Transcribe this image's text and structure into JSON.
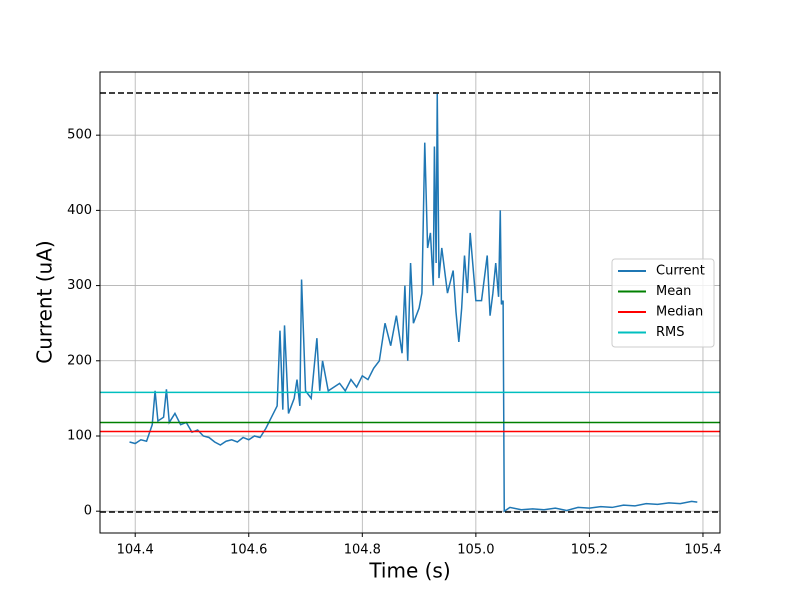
{
  "chart_data": {
    "type": "line",
    "xlabel": "Time (s)",
    "ylabel": "Current (uA)",
    "x": [
      104.39,
      104.4,
      104.41,
      104.42,
      104.43,
      104.435,
      104.44,
      104.45,
      104.455,
      104.46,
      104.47,
      104.48,
      104.49,
      104.5,
      104.51,
      104.52,
      104.53,
      104.54,
      104.55,
      104.56,
      104.57,
      104.58,
      104.59,
      104.6,
      104.61,
      104.62,
      104.63,
      104.64,
      104.65,
      104.655,
      104.66,
      104.663,
      104.67,
      104.68,
      104.685,
      104.69,
      104.693,
      104.7,
      104.71,
      104.72,
      104.725,
      104.73,
      104.74,
      104.75,
      104.76,
      104.77,
      104.78,
      104.79,
      104.8,
      104.81,
      104.82,
      104.83,
      104.84,
      104.85,
      104.86,
      104.87,
      104.875,
      104.88,
      104.885,
      104.89,
      104.9,
      104.905,
      104.91,
      104.915,
      104.92,
      104.925,
      104.927,
      104.93,
      104.932,
      104.935,
      104.94,
      104.95,
      104.96,
      104.965,
      104.97,
      104.975,
      104.98,
      104.985,
      104.99,
      105.0,
      105.01,
      105.02,
      105.025,
      105.03,
      105.035,
      105.04,
      105.043,
      105.045,
      105.048,
      105.05,
      105.06,
      105.08,
      105.1,
      105.12,
      105.14,
      105.16,
      105.18,
      105.2,
      105.22,
      105.24,
      105.26,
      105.28,
      105.3,
      105.32,
      105.34,
      105.36,
      105.38,
      105.39
    ],
    "series": [
      {
        "name": "Current",
        "color": "#1f77b4",
        "values": [
          92,
          90,
          95,
          93,
          115,
          160,
          120,
          125,
          162,
          118,
          130,
          115,
          118,
          105,
          108,
          100,
          98,
          92,
          88,
          93,
          95,
          92,
          98,
          95,
          100,
          98,
          110,
          125,
          140,
          240,
          135,
          247,
          130,
          150,
          175,
          140,
          308,
          160,
          150,
          230,
          160,
          200,
          160,
          165,
          170,
          160,
          175,
          165,
          180,
          175,
          190,
          200,
          250,
          220,
          260,
          210,
          300,
          200,
          330,
          250,
          270,
          290,
          490,
          350,
          370,
          300,
          485,
          330,
          555,
          310,
          350,
          290,
          320,
          265,
          225,
          270,
          340,
          290,
          370,
          280,
          280,
          340,
          260,
          290,
          330,
          285,
          400,
          275,
          280,
          0,
          5,
          2,
          3,
          2,
          4,
          1,
          5,
          4,
          6,
          5,
          8,
          7,
          10,
          9,
          11,
          10,
          13,
          12
        ]
      }
    ],
    "hlines": [
      {
        "name": "Mean",
        "color": "#008000",
        "value": 118
      },
      {
        "name": "Median",
        "color": "#ff0000",
        "value": 106
      },
      {
        "name": "RMS",
        "color": "#00bfbf",
        "value": 158
      }
    ],
    "dashed_lines": [
      {
        "value": 556,
        "color": "#000000"
      },
      {
        "value": -1,
        "color": "#000000"
      }
    ],
    "xlim": [
      104.338,
      105.43
    ],
    "ylim": [
      -29,
      584
    ],
    "xticks": [
      104.4,
      104.6,
      104.8,
      {
        "value": 105,
        "label": "105.0"
      },
      105.2,
      105.4
    ],
    "yticks": [
      0,
      100,
      200,
      300,
      400,
      500
    ],
    "grid": true,
    "legend": "right"
  }
}
